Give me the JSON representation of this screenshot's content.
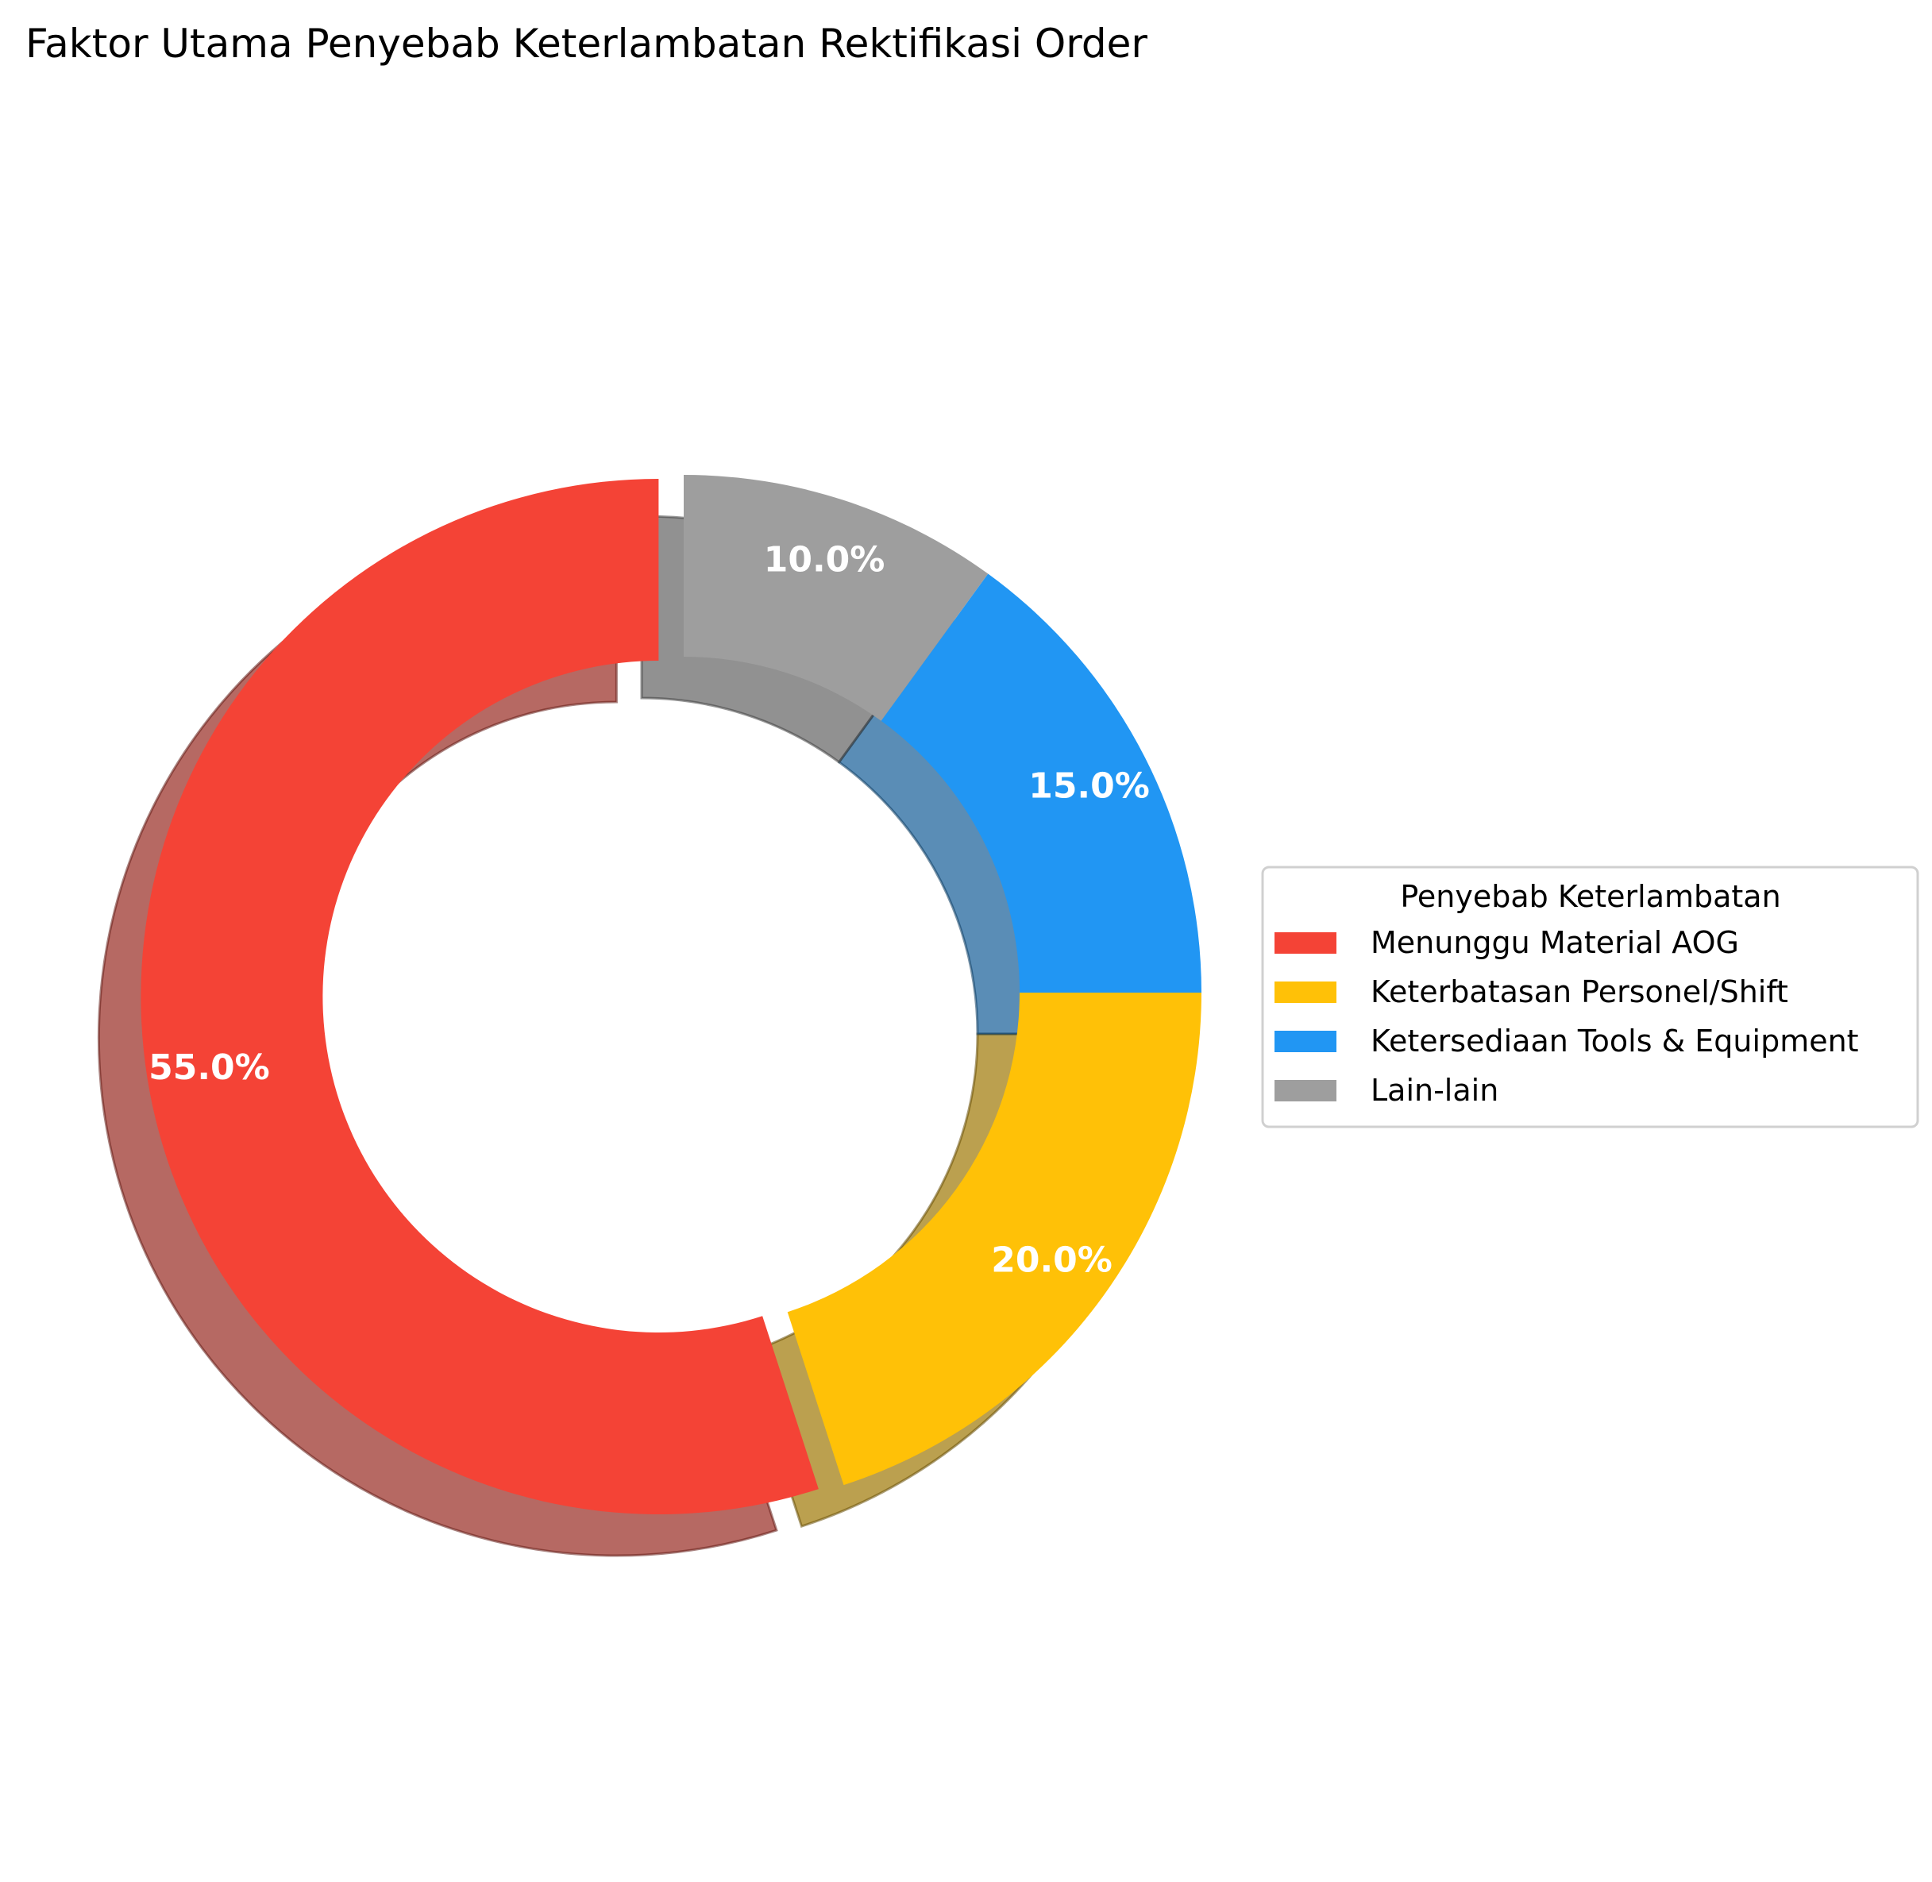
{
  "chart_data": {
    "type": "pie",
    "donut": true,
    "title": "Faktor Utama Penyebab Keterlambatan Rektifikasi Order",
    "categories": [
      "Menunggu Material AOG",
      "Keterbatasan Personel/Shift",
      "Ketersediaan Tools & Equipment",
      "Lain-lain"
    ],
    "values": [
      55.0,
      20.0,
      15.0,
      10.0
    ],
    "labels": [
      "55.0%",
      "20.0%",
      "15.0%",
      "10.0%"
    ],
    "colors": [
      "#F44336",
      "#FFC107",
      "#2196F3",
      "#9E9E9E"
    ],
    "legend": {
      "title": "Penyebab Keterlambatan",
      "placement": "center-right"
    },
    "start_angle": "top",
    "direction": "counterclockwise",
    "exploded": "Menunggu Material AOG",
    "shadow": true
  }
}
